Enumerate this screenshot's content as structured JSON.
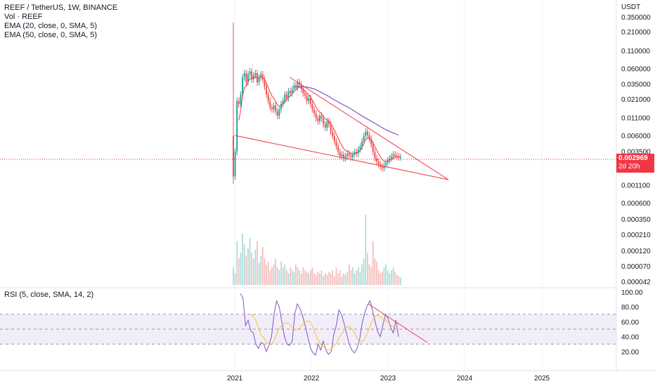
{
  "header": {
    "title": "REEF / TetherUS, 1W, BINANCE",
    "vol_label": "Vol · REEF",
    "ema20_label": "EMA (20, close, 0, SMA, 5)",
    "ema50_label": "EMA (50, close, 0, SMA, 5)"
  },
  "rsi_panel": {
    "label": "RSI (5, close, SMA, 14, 2)"
  },
  "price_badge": {
    "price": "0.002969",
    "countdown": "2d 20h"
  },
  "colors": {
    "up": "#26a69a",
    "down": "#ef5350",
    "ema20": "#f23645",
    "ema50": "#7e57c2",
    "trendline": "#f23645",
    "rsi": "#7e57c2",
    "rsi_ma": "#fbc02d",
    "rsi_band": "#ede7f6"
  },
  "chart_data": [
    {
      "type": "line",
      "title": "REEF / TetherUS, 1W, BINANCE",
      "ylabel": "USDT",
      "y_scale": "log",
      "x_ticks": [
        "2021",
        "2022",
        "2023",
        "2024",
        "2025"
      ],
      "y_ticks": [
        "0.350000",
        "0.210000",
        "0.110000",
        "0.060000",
        "0.035000",
        "0.021000",
        "0.011000",
        "0.006000",
        "0.003500",
        "0.002100",
        "0.001100",
        "0.000600",
        "0.000350",
        "0.000210",
        "0.000120",
        "0.000070",
        "0.000042"
      ],
      "ylim": [
        4.2e-05,
        0.35
      ],
      "weekly_closes": [
        0.0015,
        0.0035,
        0.02,
        0.018,
        0.025,
        0.045,
        0.052,
        0.038,
        0.05,
        0.055,
        0.042,
        0.048,
        0.052,
        0.038,
        0.045,
        0.05,
        0.042,
        0.033,
        0.025,
        0.02,
        0.016,
        0.015,
        0.017,
        0.014,
        0.012,
        0.015,
        0.018,
        0.02,
        0.025,
        0.022,
        0.028,
        0.026,
        0.03,
        0.034,
        0.032,
        0.038,
        0.035,
        0.03,
        0.026,
        0.024,
        0.02,
        0.022,
        0.018,
        0.015,
        0.013,
        0.011,
        0.01,
        0.012,
        0.011,
        0.009,
        0.008,
        0.01,
        0.009,
        0.007,
        0.006,
        0.005,
        0.0042,
        0.0035,
        0.003,
        0.0032,
        0.0028,
        0.003,
        0.0033,
        0.0031,
        0.0029,
        0.0032,
        0.0035,
        0.0033,
        0.0038,
        0.0042,
        0.005,
        0.006,
        0.007,
        0.0062,
        0.0055,
        0.0045,
        0.0035,
        0.0028,
        0.0025,
        0.0023,
        0.0021,
        0.002,
        0.0022,
        0.0024,
        0.0026,
        0.0028,
        0.003,
        0.0032,
        0.0031,
        0.003,
        0.0029,
        0.0029
      ],
      "ema50_values": [
        0.032,
        0.033,
        0.032,
        0.03,
        0.027,
        0.024,
        0.021,
        0.0185,
        0.0165,
        0.0145,
        0.0125,
        0.011,
        0.0097,
        0.0085,
        0.0075,
        0.0068,
        0.0062
      ],
      "volume": [
        12,
        8,
        30,
        18,
        22,
        35,
        28,
        20,
        25,
        32,
        22,
        18,
        24,
        30,
        15,
        20,
        26,
        18,
        14,
        16,
        10,
        12,
        14,
        18,
        12,
        10,
        16,
        12,
        14,
        10,
        8,
        12,
        10,
        9,
        14,
        12,
        10,
        8,
        12,
        10,
        9,
        8,
        10,
        12,
        8,
        7,
        9,
        8,
        10,
        6,
        8,
        7,
        9,
        8,
        10,
        6,
        12,
        8,
        10,
        6,
        8,
        7,
        9,
        14,
        10,
        12,
        8,
        10,
        12,
        9,
        14,
        18,
        48,
        22,
        14,
        12,
        30,
        18,
        16,
        10,
        8,
        9,
        12,
        14,
        10,
        8,
        10,
        12,
        9,
        7,
        6,
        5
      ],
      "volume_ticks": [
        "0.000600",
        "0.000350",
        "0.000210",
        "0.000120",
        "0.000070",
        "0.000042"
      ]
    },
    {
      "type": "line",
      "title": "RSI (5, close, SMA, 14, 2)",
      "ylim": [
        0,
        100
      ],
      "y_ticks": [
        "100.00",
        "80.00",
        "60.00",
        "40.00",
        "20.00"
      ],
      "band": [
        30,
        70
      ],
      "mid_line": 50,
      "rsi": [
        98,
        92,
        55,
        62,
        48,
        45,
        30,
        24,
        32,
        30,
        20,
        28,
        40,
        70,
        88,
        80,
        60,
        40,
        30,
        28,
        34,
        70,
        84,
        78,
        68,
        55,
        40,
        25,
        18,
        15,
        30,
        22,
        34,
        22,
        16,
        20,
        42,
        55,
        76,
        70,
        58,
        44,
        30,
        22,
        18,
        24,
        36,
        58,
        72,
        82,
        88,
        75,
        60,
        46,
        40,
        56,
        70,
        64,
        52,
        45,
        62,
        40
      ]
    }
  ]
}
